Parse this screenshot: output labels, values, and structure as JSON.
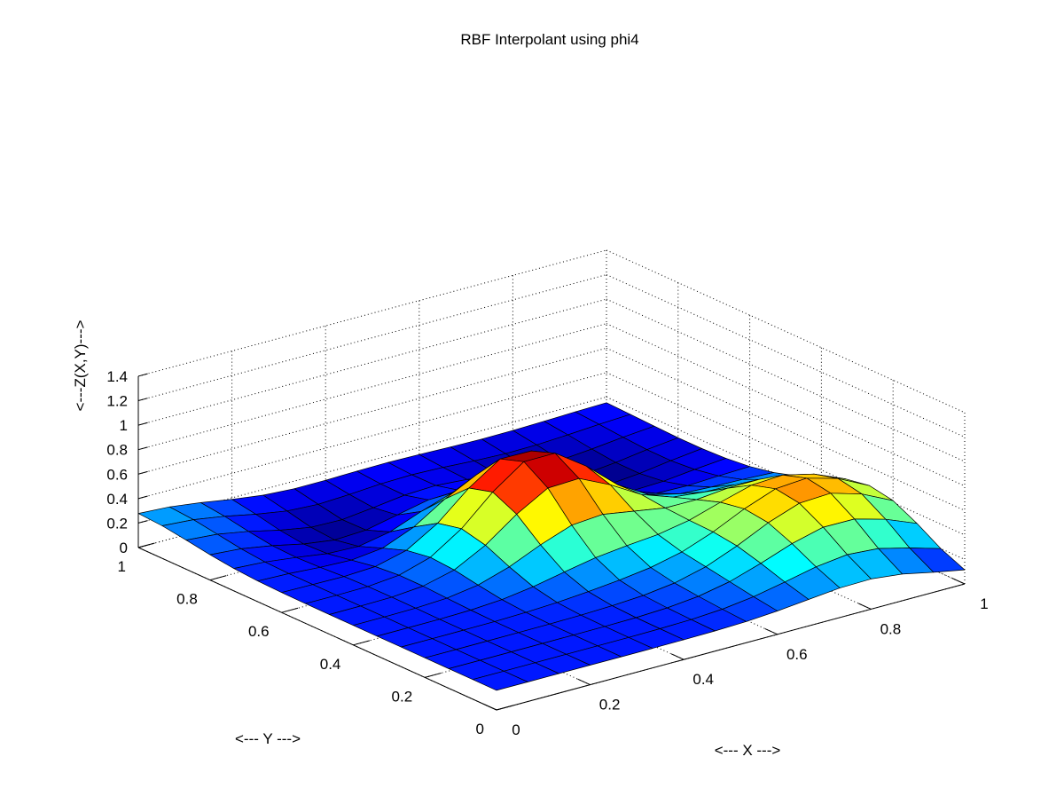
{
  "chart_data": {
    "type": "surface",
    "title": "RBF Interpolant using phi4",
    "xlabel": "<--- X --->",
    "ylabel": "<--- Y --->",
    "zlabel": "<---Z(X,Y)--->",
    "xlim": [
      0,
      1
    ],
    "ylim": [
      0,
      1
    ],
    "zlim": [
      0,
      1.4
    ],
    "grid": true,
    "colormap": "jet",
    "x_ticks": [
      "0",
      "0.2",
      "0.4",
      "0.6",
      "0.8",
      "1"
    ],
    "y_ticks": [
      "0",
      "0.2",
      "0.4",
      "0.6",
      "0.8",
      "1"
    ],
    "z_ticks": [
      "0",
      "0.2",
      "0.4",
      "0.6",
      "0.8",
      "1",
      "1.2",
      "1.4"
    ],
    "grid_points_per_axis": 16,
    "surface_features": [
      {
        "name": "central peak",
        "x": 0.5,
        "y": 0.55,
        "z": 0.88
      },
      {
        "name": "right hump",
        "x": 0.85,
        "y": 0.25,
        "z": 0.57
      },
      {
        "name": "corner (0,1)",
        "x": 0.0,
        "y": 1.0,
        "z": 0.27
      },
      {
        "name": "corner (1,0)",
        "x": 1.0,
        "y": 0.0,
        "z": 0.08
      }
    ]
  }
}
